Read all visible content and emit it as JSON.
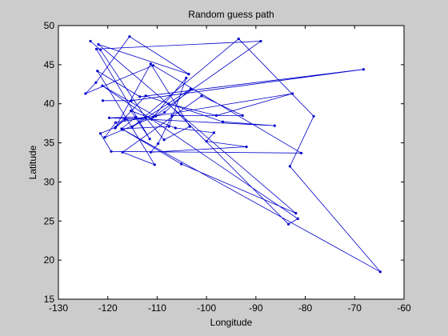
{
  "figure": {
    "background": "#cccccc",
    "axes_background": "#ffffff"
  },
  "chart_data": {
    "type": "line",
    "title": "Random guess path",
    "xlabel": "Longitude",
    "ylabel": "Latitude",
    "xlim": [
      -130,
      -60
    ],
    "ylim": [
      15,
      50
    ],
    "xticks": [
      -130,
      -120,
      -110,
      -100,
      -90,
      -80,
      -70,
      -60
    ],
    "yticks": [
      15,
      20,
      25,
      30,
      35,
      40,
      45,
      50
    ],
    "grid": false,
    "legend": "none",
    "line_color": "#0000cc",
    "marker": "dot",
    "series": [
      {
        "x": [
          -123.5,
          -121.5,
          -112.3,
          -108.6,
          -103.4,
          -111.3,
          -118.5,
          -116.5,
          -110.3,
          -121.1,
          -81.5,
          -83.4,
          -107.7,
          -98.0,
          -82.6,
          -118.4,
          -120.6,
          -108.5,
          -103.2,
          -115.1,
          -93.5,
          -78.3,
          -83.1,
          -64.8,
          -116.9,
          -105.1,
          -81.9,
          -121.9,
          -103.6,
          -115.6,
          -122.4,
          -124.5,
          -110.8,
          -80.8,
          -119.3,
          -121.5,
          -118.4,
          -112.3,
          -96.7,
          -86.2,
          -111.1,
          -119.7,
          -114.3,
          -117.2,
          -107.6,
          -104.1,
          -110.8,
          -89.0,
          -122.3,
          -111.5,
          -115.3,
          -106.3,
          -98.5,
          -100.0,
          -91.9,
          -111.3,
          -109.8,
          -107.0,
          -92.7,
          -101.0,
          -117.0,
          -110.5,
          -122.1,
          -113.5,
          -68.2,
          -115.2,
          -121.0
        ],
        "y": [
          48.0,
          46.9,
          38.2,
          35.4,
          37.1,
          45.1,
          36.9,
          38.0,
          38.4,
          42.3,
          25.3,
          24.6,
          40.0,
          38.5,
          41.3,
          37.6,
          35.7,
          38.9,
          41.9,
          37.0,
          48.3,
          38.4,
          32.0,
          18.5,
          36.7,
          32.3,
          26.0,
          47.6,
          43.8,
          48.6,
          42.7,
          41.3,
          44.9,
          33.7,
          33.9,
          36.2,
          37.0,
          41.0,
          37.7,
          37.2,
          38.0,
          38.2,
          38.3,
          36.8,
          37.1,
          43.3,
          38.3,
          48.0,
          47.0,
          35.5,
          39.1,
          36.9,
          36.3,
          35.2,
          34.5,
          33.8,
          34.9,
          38.5,
          38.5,
          41.0,
          33.8,
          32.2,
          44.2,
          40.9,
          44.4,
          40.4,
          40.4
        ]
      }
    ]
  }
}
